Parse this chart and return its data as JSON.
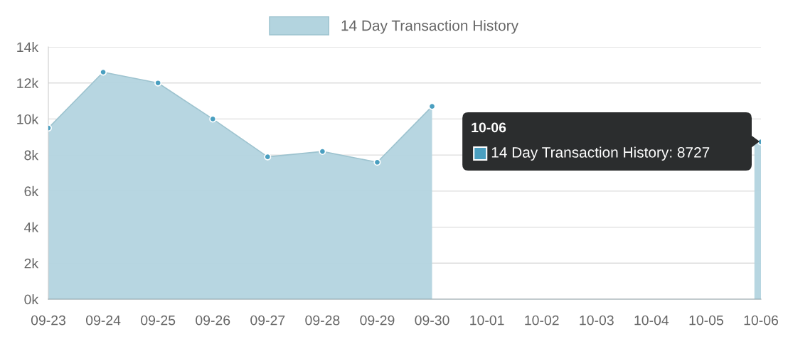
{
  "chart_data": {
    "type": "area",
    "categories": [
      "09-23",
      "09-24",
      "09-25",
      "09-26",
      "09-27",
      "09-28",
      "09-29",
      "09-30",
      "10-01",
      "10-02",
      "10-03",
      "10-04",
      "10-05",
      "10-06"
    ],
    "series": [
      {
        "name": "14 Day Transaction History",
        "color": "#b3d4df",
        "values": [
          9500,
          12600,
          12000,
          10000,
          7900,
          8200,
          7600,
          10700,
          null,
          null,
          null,
          null,
          null,
          8727
        ]
      }
    ],
    "ylim": [
      0,
      14000
    ],
    "yticks": [
      {
        "value": 0,
        "label": "0k"
      },
      {
        "value": 2000,
        "label": "2k"
      },
      {
        "value": 4000,
        "label": "4k"
      },
      {
        "value": 6000,
        "label": "6k"
      },
      {
        "value": 8000,
        "label": "8k"
      },
      {
        "value": 10000,
        "label": "10k"
      },
      {
        "value": 12000,
        "label": "12k"
      },
      {
        "value": 14000,
        "label": "14k"
      }
    ],
    "annotations": [
      "10-06",
      "14 Day Transaction History: 8727"
    ],
    "grid": "y",
    "legend": "top",
    "marker": "circle",
    "line_style": "solid"
  }
}
